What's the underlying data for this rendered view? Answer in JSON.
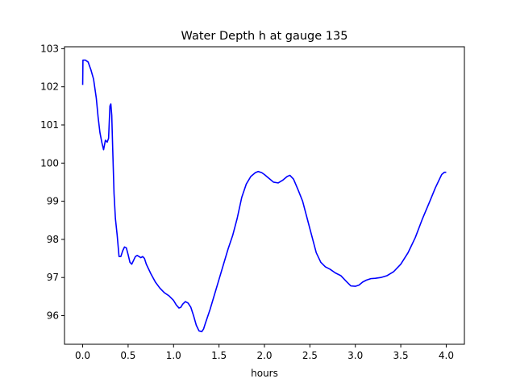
{
  "chart_data": {
    "type": "line",
    "title": "Water Depth h at gauge 135",
    "xlabel": "hours",
    "ylabel": "",
    "xlim": [
      -0.2,
      4.2
    ],
    "ylim": [
      95.25,
      103.05
    ],
    "xticks": [
      0.0,
      0.5,
      1.0,
      1.5,
      2.0,
      2.5,
      3.0,
      3.5,
      4.0
    ],
    "xtick_labels": [
      "0.0",
      "0.5",
      "1.0",
      "1.5",
      "2.0",
      "2.5",
      "3.0",
      "3.5",
      "4.0"
    ],
    "yticks": [
      96,
      97,
      98,
      99,
      100,
      101,
      102,
      103
    ],
    "ytick_labels": [
      "96",
      "97",
      "98",
      "99",
      "100",
      "101",
      "102",
      "103"
    ],
    "grid": false,
    "line_color": "#0000ff",
    "series": [
      {
        "name": "",
        "x": [
          0.0,
          0.003,
          0.03,
          0.06,
          0.09,
          0.12,
          0.15,
          0.17,
          0.19,
          0.21,
          0.23,
          0.25,
          0.27,
          0.285,
          0.3,
          0.31,
          0.32,
          0.33,
          0.345,
          0.36,
          0.38,
          0.4,
          0.42,
          0.44,
          0.46,
          0.48,
          0.5,
          0.52,
          0.54,
          0.56,
          0.58,
          0.6,
          0.62,
          0.64,
          0.66,
          0.68,
          0.7,
          0.75,
          0.8,
          0.85,
          0.9,
          0.95,
          1.0,
          1.03,
          1.06,
          1.08,
          1.1,
          1.13,
          1.16,
          1.19,
          1.22,
          1.25,
          1.28,
          1.31,
          1.33,
          1.35,
          1.4,
          1.45,
          1.5,
          1.55,
          1.6,
          1.65,
          1.7,
          1.75,
          1.8,
          1.85,
          1.9,
          1.93,
          1.97,
          2.0,
          2.05,
          2.1,
          2.15,
          2.2,
          2.25,
          2.28,
          2.32,
          2.37,
          2.42,
          2.47,
          2.52,
          2.57,
          2.62,
          2.67,
          2.72,
          2.78,
          2.84,
          2.9,
          2.95,
          3.0,
          3.04,
          3.08,
          3.12,
          3.17,
          3.22,
          3.28,
          3.35,
          3.42,
          3.5,
          3.58,
          3.66,
          3.74,
          3.82,
          3.88,
          3.92,
          3.95,
          3.98,
          4.0
        ],
        "y": [
          102.05,
          102.7,
          102.7,
          102.65,
          102.45,
          102.2,
          101.7,
          101.2,
          100.8,
          100.55,
          100.35,
          100.6,
          100.55,
          100.65,
          101.5,
          101.55,
          101.25,
          100.4,
          99.2,
          98.55,
          98.1,
          97.55,
          97.55,
          97.7,
          97.8,
          97.78,
          97.6,
          97.4,
          97.35,
          97.45,
          97.55,
          97.58,
          97.55,
          97.52,
          97.55,
          97.5,
          97.35,
          97.1,
          96.88,
          96.72,
          96.6,
          96.52,
          96.4,
          96.28,
          96.2,
          96.22,
          96.3,
          96.37,
          96.33,
          96.22,
          96.0,
          95.75,
          95.6,
          95.58,
          95.65,
          95.8,
          96.15,
          96.55,
          96.95,
          97.35,
          97.75,
          98.1,
          98.55,
          99.1,
          99.45,
          99.65,
          99.75,
          99.78,
          99.75,
          99.7,
          99.6,
          99.5,
          99.48,
          99.55,
          99.65,
          99.68,
          99.58,
          99.3,
          99.0,
          98.55,
          98.1,
          97.65,
          97.4,
          97.28,
          97.22,
          97.12,
          97.05,
          96.9,
          96.78,
          96.77,
          96.8,
          96.88,
          96.93,
          96.97,
          96.98,
          97.0,
          97.05,
          97.15,
          97.35,
          97.65,
          98.05,
          98.55,
          99.0,
          99.35,
          99.55,
          99.7,
          99.76,
          99.76
        ]
      }
    ]
  }
}
